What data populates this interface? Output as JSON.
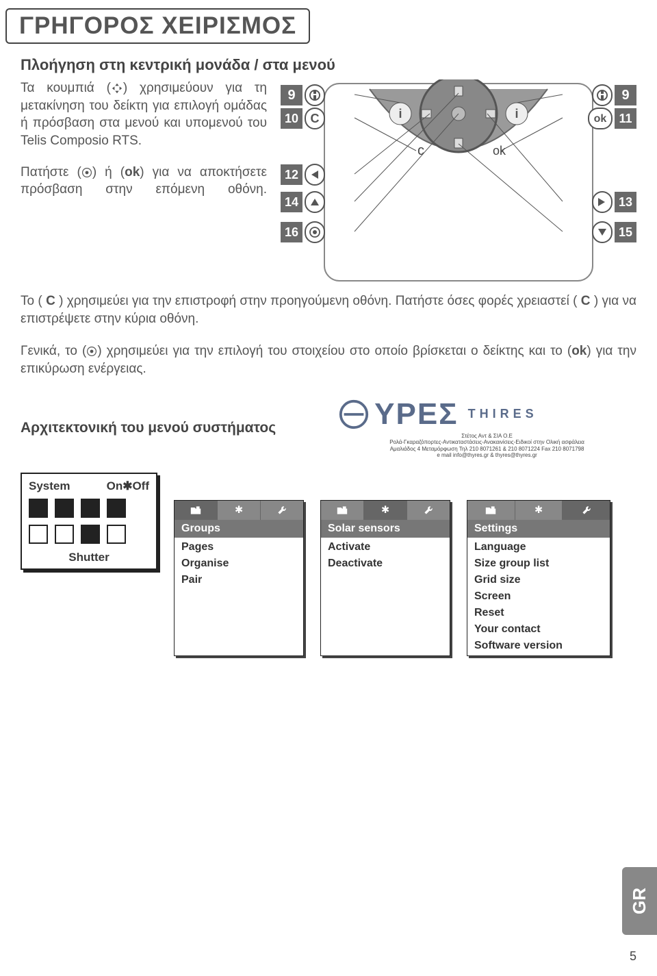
{
  "page": {
    "title": "ΓΡΗΓΟΡΟΣ ΧΕΙΡΙΣΜΟΣ",
    "number": "5",
    "lang_tab": "GR",
    "background": "#ffffff",
    "text_color": "#555555"
  },
  "nav_section": {
    "heading": "Πλοήγηση στη κεντρική μονάδα / στα μενού",
    "para1_a": "Τα κουμπιά (",
    "para1_b": ") χρησιμεύουν για τη μετακίνηση του δείκτη για επιλογή ομάδας ή πρόσβαση στα μενού και υπομενού του Telis Composio RTS.",
    "para2_a": "Πατήστε (",
    "para2_b": ") ή (",
    "para2_ok": "ok",
    "para2_c": ") για να αποκτήσετε πρόσβαση στην επόμενη οθόνη.",
    "para3_a": "Το ( ",
    "para3_c": "C",
    "para3_b": " ) χρησιμεύει για την επιστροφή στην προηγούμενη οθόνη. Πατήστε όσες φορές χρειαστεί ( ",
    "para3_d": " ) για να επιστρέψετε στην κύρια οθόνη.",
    "para4_a": "Γενικά, το (",
    "para4_b": ") χρησιμεύει για την επιλογή του στοιχείου στο οποίο βρίσκεται ο δείκτης και το (",
    "para4_ok": "ok",
    "para4_c": ") για την επικύρωση ενέργειας."
  },
  "device": {
    "labels": {
      "n9a": "9",
      "n9b": "9",
      "n10": "10",
      "n11": "11",
      "n12": "12",
      "n13": "13",
      "n14": "14",
      "n15": "15",
      "n16": "16",
      "c_label": "C",
      "ok_label": "ok",
      "c_body": "c",
      "ok_body": "ok"
    },
    "colors": {
      "label_box_fill": "#6a6a6a",
      "label_box_text": "#ffffff",
      "device_body": "#9a9a9a",
      "device_border": "#555555",
      "button_fill": "#ffffff",
      "frame_border": "#777777"
    }
  },
  "logo": {
    "brand": "ΥΡΕΣ",
    "sub": "THIRES",
    "line1": "Στέτος Αντ & ΣΙΑ Ο.Ε",
    "line2": "Ρολά-Γκαραζόπορτες-Αντικαταστάσεις-Ανακαινίσεις-Ειδικοί στην Ολική ασφάλεια",
    "line3": "Αμαλιάδος 4 Μεταμόρφωση Τηλ 210 8071261 & 210 8071224 Fax 210 8071798",
    "line4": "e mail info@thyres.gr & thyres@thyres.gr",
    "color": "#5a6b8a"
  },
  "arch_heading": "Αρχιτεκτονική του μενού συστήματος",
  "system_panel": {
    "top_left": "System",
    "top_right": "On✱Off",
    "bottom": "Shutter",
    "grid": [
      true,
      true,
      true,
      true,
      false,
      false,
      true,
      false
    ]
  },
  "menus": [
    {
      "header": "Groups",
      "items": [
        "Pages",
        "Organise",
        "Pair"
      ],
      "tab_icons": [
        "folder-icon",
        "sun-icon",
        "wrench-icon"
      ],
      "active_tab": 0
    },
    {
      "header": "Solar sensors",
      "items": [
        "Activate",
        "Deactivate"
      ],
      "tab_icons": [
        "folder-icon",
        "sun-icon",
        "wrench-icon"
      ],
      "active_tab": 1
    },
    {
      "header": "Settings",
      "items": [
        "Language",
        "Size group list",
        "Grid size",
        "Screen",
        "Reset",
        "Your contact",
        "Software version"
      ],
      "tab_icons": [
        "folder-icon",
        "sun-icon",
        "wrench-icon"
      ],
      "active_tab": 2
    }
  ]
}
